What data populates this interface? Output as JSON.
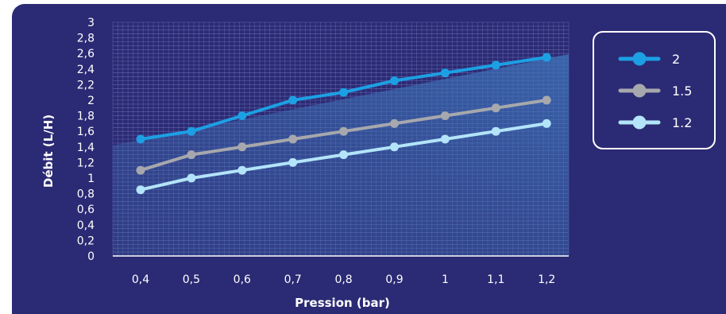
{
  "chart_data": {
    "type": "line",
    "x": [
      "0,4",
      "0,5",
      "0,6",
      "0,7",
      "0,8",
      "0,9",
      "1",
      "1,1",
      "1,2"
    ],
    "series": [
      {
        "name": "2",
        "values": [
          1.5,
          1.6,
          1.8,
          2.0,
          2.1,
          2.25,
          2.35,
          2.45,
          2.55
        ],
        "color": "#1ca0e3"
      },
      {
        "name": "1.5",
        "values": [
          1.1,
          1.3,
          1.4,
          1.5,
          1.6,
          1.7,
          1.8,
          1.9,
          2.0
        ],
        "color": "#a7a8ad"
      },
      {
        "name": "1.2",
        "values": [
          0.85,
          1.0,
          1.1,
          1.2,
          1.3,
          1.4,
          1.5,
          1.6,
          1.7
        ],
        "color": "#b3e4f9"
      }
    ],
    "yticks": [
      "0",
      "0,2",
      "0,4",
      "0,6",
      "0,8",
      "1",
      "1,2",
      "1,4",
      "1,6",
      "1,8",
      "2",
      "2,2",
      "2,4",
      "2,6",
      "2,8",
      "3"
    ],
    "ylim": [
      0,
      3
    ],
    "xlabel": "Pression  (bar)",
    "ylabel": "Débit (L/H)",
    "grid": true,
    "legend_position": "top-right",
    "background_color": "#2b2a74",
    "grid_color": "#8a92d2",
    "shaded_area_color": "#3d74b5"
  }
}
